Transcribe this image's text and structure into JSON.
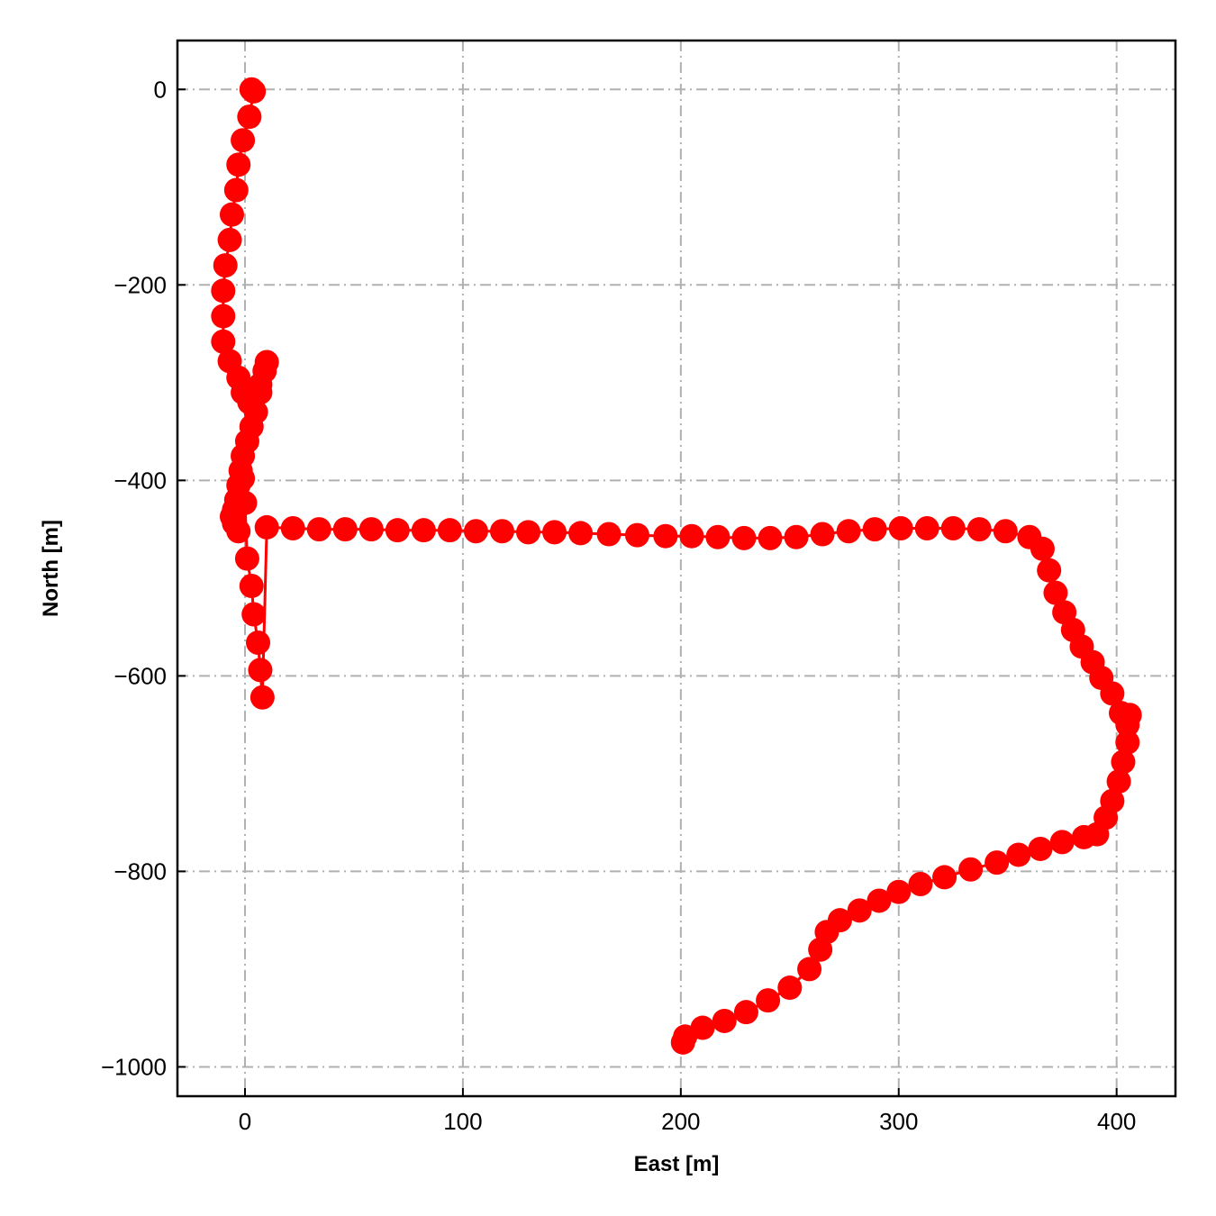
{
  "chart_data": {
    "type": "line",
    "title": "",
    "xlabel": "East [m]",
    "ylabel": "North [m]",
    "xlim": [
      -31,
      427
    ],
    "ylim": [
      -1030,
      50
    ],
    "xticks": [
      0,
      100,
      200,
      300,
      400
    ],
    "yticks": [
      0,
      -200,
      -400,
      -600,
      -800,
      -1000
    ],
    "xtick_labels": [
      "0",
      "100",
      "200",
      "300",
      "400"
    ],
    "ytick_labels": [
      "0",
      "−200",
      "−400",
      "−600",
      "−800",
      "−1000"
    ],
    "grid": true,
    "legend": "none",
    "series": [
      {
        "color": "#ff0000",
        "marker": "circle",
        "x": [
          3,
          4,
          2,
          -1,
          -3,
          -4,
          -6,
          -7,
          -9,
          -10,
          -10,
          -10,
          -7,
          -3,
          -1,
          2,
          4,
          7,
          10,
          9,
          7,
          5,
          3,
          1,
          -1,
          -2,
          -3,
          -4,
          -5,
          -6,
          -5,
          -3,
          -1,
          0,
          1,
          3,
          4,
          6,
          7,
          8,
          10,
          22,
          34,
          46,
          58,
          70,
          82,
          94,
          106,
          118,
          130,
          142,
          154,
          167,
          180,
          193,
          205,
          217,
          229,
          241,
          253,
          265,
          277,
          289,
          301,
          313,
          325,
          337,
          349,
          360,
          366,
          369,
          372,
          376,
          380,
          384,
          389,
          393,
          398,
          402,
          405,
          406,
          405,
          403,
          401,
          398,
          395,
          391,
          385,
          375,
          365,
          355,
          345,
          333,
          321,
          310,
          300,
          291,
          282,
          273,
          267,
          264,
          259,
          250,
          240,
          230,
          220,
          210,
          202,
          201
        ],
        "y": [
          0,
          -2,
          -28,
          -52,
          -77,
          -103,
          -128,
          -154,
          -180,
          -206,
          -232,
          -258,
          -278,
          -295,
          -310,
          -320,
          -316,
          -302,
          -279,
          -288,
          -310,
          -330,
          -345,
          -360,
          -375,
          -390,
          -405,
          -420,
          -430,
          -437,
          -444,
          -452,
          -398,
          -423,
          -480,
          -508,
          -537,
          -566,
          -594,
          -622,
          -448,
          -449,
          -450,
          -450,
          -450,
          -451,
          -451,
          -451,
          -452,
          -452,
          -453,
          -453,
          -454,
          -455,
          -456,
          -457,
          -457,
          -458,
          -459,
          -459,
          -458,
          -455,
          -452,
          -450,
          -449,
          -449,
          -449,
          -450,
          -452,
          -458,
          -470,
          -492,
          -515,
          -535,
          -553,
          -570,
          -586,
          -602,
          -618,
          -638,
          -650,
          -640,
          -668,
          -688,
          -708,
          -728,
          -745,
          -762,
          -765,
          -770,
          -777,
          -783,
          -791,
          -798,
          -806,
          -813,
          -821,
          -830,
          -840,
          -850,
          -862,
          -880,
          -900,
          -919,
          -932,
          -944,
          -953,
          -960,
          -969,
          -975
        ]
      }
    ]
  }
}
